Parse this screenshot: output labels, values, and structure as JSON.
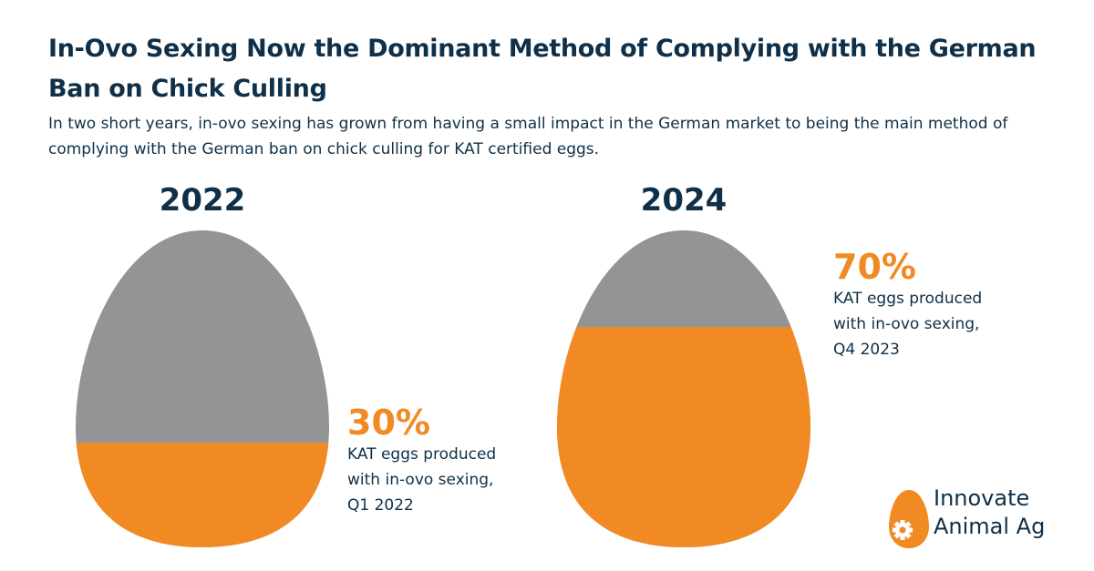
{
  "header": {
    "title": "In-Ovo Sexing Now the Dominant Method of Complying with the German Ban on Chick Culling",
    "subtitle": "In two short years, in-ovo sexing has grown from having a small impact in the German market to being the main method of complying with the German ban on chick culling for KAT certified eggs."
  },
  "colors": {
    "orange": "#f28a24",
    "gray": "#939496",
    "navy": "#0f3048"
  },
  "chart_data": {
    "type": "pictorial-fill",
    "title": "In-Ovo Sexing Now the Dominant Method of Complying with the German Ban on Chick Culling",
    "unit": "%",
    "categories": [
      "2022",
      "2024"
    ],
    "series": [
      {
        "name": "KAT eggs produced with in-ovo sexing",
        "values": [
          30,
          70
        ]
      }
    ],
    "annotations": [
      {
        "label": "30%",
        "text_line1": "KAT eggs produced",
        "text_line2": "with in-ovo sexing,",
        "text_line3": "Q1 2022"
      },
      {
        "label": "70%",
        "text_line1": "KAT eggs produced",
        "text_line2": "with in-ovo sexing,",
        "text_line3": "Q4 2023"
      }
    ]
  },
  "logo": {
    "line1": "Innovate",
    "line2": "Animal Ag",
    "icon": "egg-gear-icon"
  }
}
